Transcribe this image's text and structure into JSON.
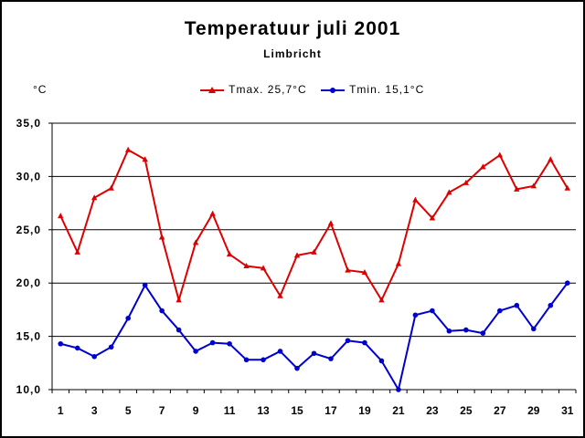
{
  "chart_data": {
    "type": "line",
    "title": "Temperatuur juli 2001",
    "subtitle": "Limbricht",
    "ylabel": "°C",
    "xlabel": "",
    "ylim": [
      10.0,
      35.0
    ],
    "y_ticks": [
      "10,0",
      "15,0",
      "20,0",
      "25,0",
      "30,0",
      "35,0"
    ],
    "y_tick_values": [
      10,
      15,
      20,
      25,
      30,
      35
    ],
    "x": [
      1,
      2,
      3,
      4,
      5,
      6,
      7,
      8,
      9,
      10,
      11,
      12,
      13,
      14,
      15,
      16,
      17,
      18,
      19,
      20,
      21,
      22,
      23,
      24,
      25,
      26,
      27,
      28,
      29,
      30,
      31
    ],
    "x_tick_labels": [
      "1",
      "3",
      "5",
      "7",
      "9",
      "11",
      "13",
      "15",
      "17",
      "19",
      "21",
      "23",
      "25",
      "27",
      "29",
      "31"
    ],
    "x_tick_values": [
      1,
      3,
      5,
      7,
      9,
      11,
      13,
      15,
      17,
      19,
      21,
      23,
      25,
      27,
      29,
      31
    ],
    "grid": "horizontal",
    "legend_position": "top",
    "series": [
      {
        "name": "Tmax. 25,7°C",
        "color": "#dd0000",
        "marker": "triangle",
        "values": [
          26.3,
          22.9,
          28.0,
          28.9,
          32.5,
          31.6,
          24.3,
          18.4,
          23.8,
          26.5,
          22.7,
          21.6,
          21.4,
          18.8,
          22.6,
          22.9,
          25.6,
          21.2,
          21.0,
          18.4,
          21.8,
          27.8,
          26.1,
          28.5,
          29.4,
          30.9,
          32.0,
          28.8,
          29.1,
          31.6,
          28.9
        ]
      },
      {
        "name": "Tmin. 15,1°C",
        "color": "#0000cc",
        "marker": "circle",
        "values": [
          14.3,
          13.9,
          13.1,
          14.0,
          16.7,
          19.8,
          17.4,
          15.6,
          13.6,
          14.4,
          14.3,
          12.8,
          12.8,
          13.6,
          12.0,
          13.4,
          12.9,
          14.6,
          14.4,
          12.7,
          10.0,
          17.0,
          17.4,
          15.5,
          15.6,
          15.3,
          17.4,
          17.9,
          15.7,
          17.9,
          20.0
        ]
      }
    ]
  }
}
